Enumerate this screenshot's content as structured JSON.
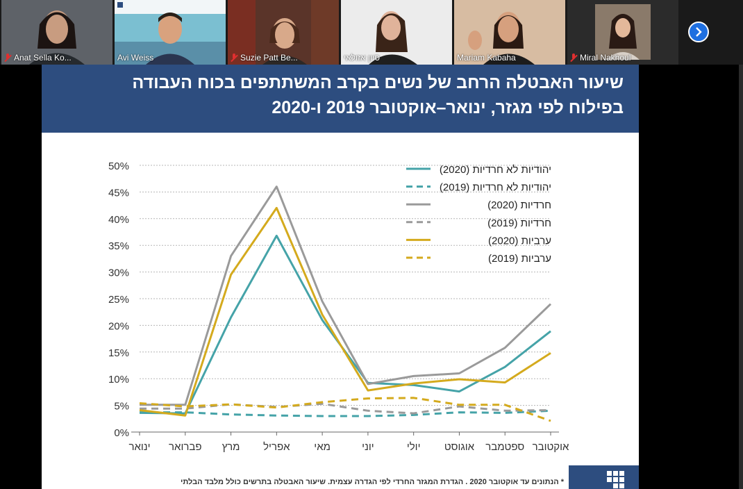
{
  "participants": [
    {
      "name": "Anat Sella Ko...",
      "muted": true,
      "bg": "#3a3f45"
    },
    {
      "name": "Avi Weiss",
      "muted": false,
      "bg": "#6fb3c9"
    },
    {
      "name": "Suzie Patt Be...",
      "muted": true,
      "bg": "#5a3a2e"
    },
    {
      "name": "סיון אזולאי",
      "muted": false,
      "bg": "#e6e6e6"
    },
    {
      "name": "Mariam Kabaha",
      "muted": false,
      "bg": "#c9a98a"
    },
    {
      "name": "Miral Nakhoul",
      "muted": true,
      "bg": "#2a2a2a"
    }
  ],
  "slide": {
    "title_line1": "שיעור האבטלה הרחב של נשים בקרב המשתתפים בכוח העבודה",
    "title_line2": "בפילוח לפי מגזר, ינואר–אוקטובר 2019 ו-2020",
    "footnote": "* הנתונים עד אוקטובר 2020 . הגדרת המגזר החרדי לפי הגדרה עצמית. שיעור האבטלה בתרשים כולל מלבד הבלתי"
  },
  "chart_data": {
    "type": "line",
    "categories": [
      "ינואר",
      "פברואר",
      "מרץ",
      "אפריל",
      "מאי",
      "יוני",
      "יולי",
      "אוגוסט",
      "ספטמבר",
      "אוקטובר"
    ],
    "yticks": [
      "0%",
      "5%",
      "10%",
      "15%",
      "20%",
      "25%",
      "30%",
      "35%",
      "40%",
      "45%",
      "50%"
    ],
    "ylim": [
      0,
      50
    ],
    "grid": true,
    "legend_position": "top-right",
    "series": [
      {
        "name": "יהודיות לא חרדיות (2020)",
        "color": "#45a3a8",
        "dashed": false,
        "values": [
          3.6,
          3.5,
          21.5,
          36.8,
          21.0,
          9.2,
          8.8,
          7.6,
          12.2,
          18.9
        ]
      },
      {
        "name": "יהודיות לא חרדיות (2019)",
        "color": "#45a3a8",
        "dashed": true,
        "values": [
          3.7,
          3.7,
          3.3,
          3.1,
          3.0,
          3.0,
          3.2,
          3.7,
          3.6,
          4.0
        ]
      },
      {
        "name": "חרדיות (2020)",
        "color": "#9a9a9a",
        "dashed": false,
        "values": [
          5.1,
          5.1,
          33.0,
          46.0,
          24.5,
          9.0,
          10.5,
          11.0,
          15.8,
          24.0
        ]
      },
      {
        "name": "חרדיות (2019)",
        "color": "#9a9a9a",
        "dashed": true,
        "values": [
          4.4,
          4.4,
          5.2,
          4.7,
          5.3,
          4.0,
          3.5,
          4.8,
          4.0,
          4.1
        ]
      },
      {
        "name": "ערביות (2020)",
        "color": "#d4aa1d",
        "dashed": false,
        "values": [
          4.1,
          3.1,
          29.5,
          42.0,
          22.0,
          7.8,
          9.1,
          9.9,
          9.3,
          14.8
        ]
      },
      {
        "name": "ערביות (2019)",
        "color": "#d4aa1d",
        "dashed": true,
        "values": [
          5.4,
          4.8,
          5.2,
          4.6,
          5.6,
          6.3,
          6.4,
          5.1,
          5.1,
          2.1
        ]
      }
    ]
  }
}
